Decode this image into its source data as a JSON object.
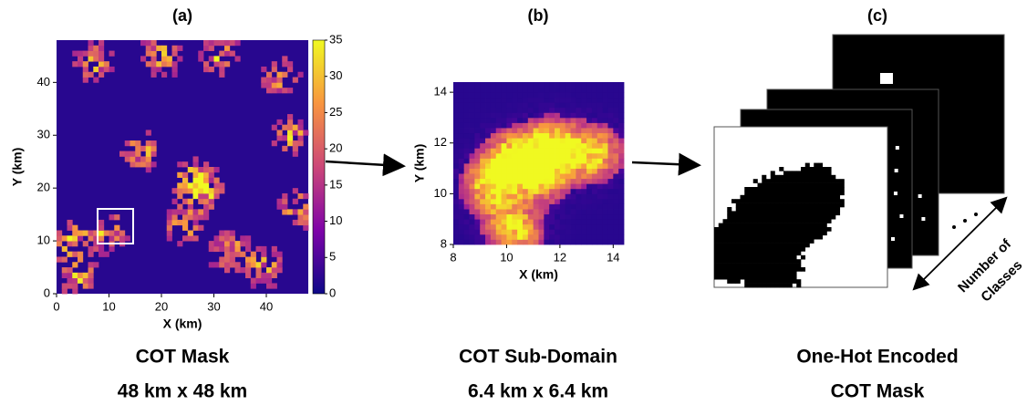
{
  "panels": [
    {
      "label": "(a)",
      "caption": [
        "COT Mask",
        "48 km x 48 km"
      ],
      "xlabel": "X (km)",
      "ylabel": "Y (km)",
      "xlim": [
        0,
        48
      ],
      "ylim": [
        0,
        48
      ],
      "xticks": [
        0,
        10,
        20,
        30,
        40
      ],
      "yticks": [
        0,
        10,
        20,
        30,
        40
      ],
      "colorbar": {
        "lim": [
          0,
          35
        ],
        "ticks": [
          0,
          5,
          10,
          15,
          20,
          25,
          30,
          35
        ]
      }
    },
    {
      "label": "(b)",
      "caption": [
        "COT Sub-Domain",
        "6.4 km x 6.4 km"
      ],
      "xlabel": "X (km)",
      "ylabel": "Y (km)",
      "xlim": [
        8,
        14.4
      ],
      "ylim": [
        8,
        14.4
      ],
      "xticks": [
        8,
        10,
        12,
        14
      ],
      "yticks": [
        8,
        10,
        12,
        14
      ]
    },
    {
      "label": "(c)",
      "caption": [
        "One-Hot Encoded",
        "COT Mask"
      ],
      "annotation": [
        "Number of",
        "Classes"
      ]
    }
  ]
}
